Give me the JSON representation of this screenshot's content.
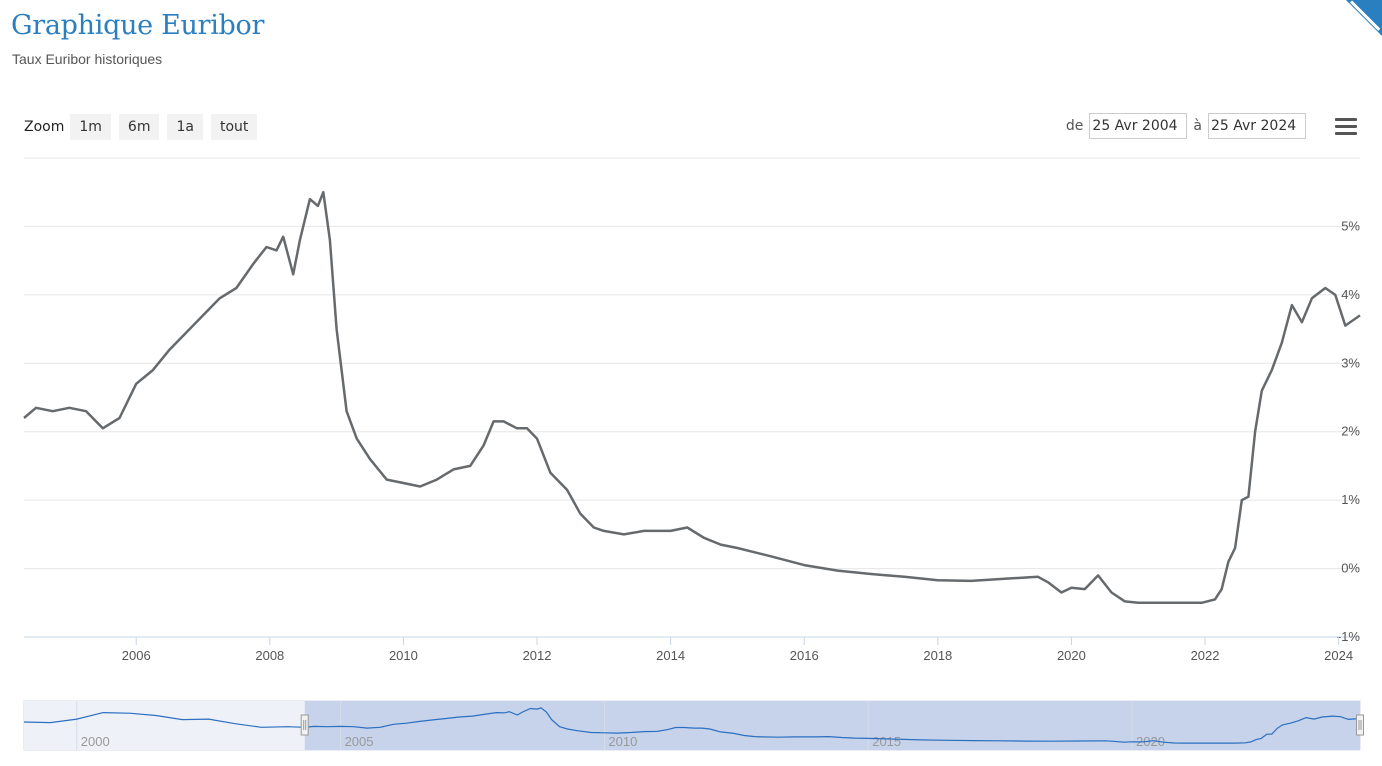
{
  "header": {
    "title": "Graphique Euribor",
    "subtitle": "Taux Euribor historiques"
  },
  "toolbar": {
    "zoom_label": "Zoom",
    "zoom_buttons": [
      "1m",
      "6m",
      "1a",
      "tout"
    ],
    "from_label": "de",
    "from_value": "25 Avr 2004",
    "to_label": "à",
    "to_value": "25 Avr 2024",
    "menu_icon": "hamburger-menu-icon"
  },
  "colors": {
    "title": "#2a7fc1",
    "line": "#666a6d",
    "navigator_line": "#2a6fc1",
    "navigator_mask": "#c6d3ea"
  },
  "chart_data": {
    "type": "line",
    "y_axis_position": "right",
    "ylim": [
      -1,
      6
    ],
    "yticks": [
      "5%",
      "4%",
      "3%",
      "2%",
      "1%",
      "0%",
      "-1%"
    ],
    "xlim": [
      2004.32,
      2024.32
    ],
    "xticks": [
      "2006",
      "2008",
      "2010",
      "2012",
      "2014",
      "2016",
      "2018",
      "2020",
      "2022",
      "2024"
    ],
    "grid": true,
    "series": [
      {
        "x": [
          2004.32,
          2004.5,
          2004.75,
          2005.0,
          2005.25,
          2005.5,
          2005.75,
          2006.0,
          2006.25,
          2006.5,
          2006.75,
          2007.0,
          2007.25,
          2007.5,
          2007.75,
          2007.95,
          2008.1,
          2008.2,
          2008.35,
          2008.45,
          2008.6,
          2008.72,
          2008.8,
          2008.9,
          2009.0,
          2009.15,
          2009.3,
          2009.5,
          2009.75,
          2010.0,
          2010.25,
          2010.5,
          2010.75,
          2011.0,
          2011.2,
          2011.35,
          2011.5,
          2011.7,
          2011.85,
          2012.0,
          2012.2,
          2012.45,
          2012.65,
          2012.85,
          2013.0,
          2013.3,
          2013.6,
          2014.0,
          2014.25,
          2014.5,
          2014.75,
          2015.0,
          2015.5,
          2016.0,
          2016.5,
          2017.0,
          2017.5,
          2018.0,
          2018.5,
          2019.0,
          2019.5,
          2019.65,
          2019.85,
          2020.0,
          2020.2,
          2020.4,
          2020.6,
          2020.8,
          2021.0,
          2021.5,
          2021.95,
          2022.15,
          2022.25,
          2022.35,
          2022.45,
          2022.55,
          2022.65,
          2022.75,
          2022.85,
          2023.0,
          2023.15,
          2023.3,
          2023.45,
          2023.6,
          2023.8,
          2023.95,
          2024.1,
          2024.32
        ],
        "values": [
          2.2,
          2.35,
          2.3,
          2.35,
          2.3,
          2.05,
          2.2,
          2.7,
          2.9,
          3.2,
          3.45,
          3.7,
          3.95,
          4.1,
          4.45,
          4.7,
          4.65,
          4.85,
          4.3,
          4.8,
          5.4,
          5.3,
          5.5,
          4.8,
          3.5,
          2.3,
          1.9,
          1.6,
          1.3,
          1.25,
          1.2,
          1.3,
          1.45,
          1.5,
          1.8,
          2.15,
          2.15,
          2.05,
          2.05,
          1.9,
          1.4,
          1.15,
          0.8,
          0.6,
          0.55,
          0.5,
          0.55,
          0.55,
          0.6,
          0.45,
          0.35,
          0.3,
          0.18,
          0.05,
          -0.03,
          -0.08,
          -0.12,
          -0.17,
          -0.18,
          -0.15,
          -0.12,
          -0.2,
          -0.35,
          -0.28,
          -0.3,
          -0.1,
          -0.35,
          -0.48,
          -0.5,
          -0.5,
          -0.5,
          -0.45,
          -0.3,
          0.1,
          0.3,
          1.0,
          1.05,
          2.0,
          2.6,
          2.9,
          3.3,
          3.85,
          3.6,
          3.95,
          4.1,
          4.0,
          3.55,
          3.7
        ]
      }
    ],
    "navigator": {
      "xticks": [
        "2000",
        "2005",
        "2010",
        "2015",
        "2020"
      ],
      "xlim": [
        1999.0,
        2024.32
      ],
      "selected_range": [
        2004.32,
        2024.32
      ],
      "series_x": [
        1999.0,
        1999.5,
        2000.0,
        2000.5,
        2001.0,
        2001.5,
        2002.0,
        2002.5,
        2003.0,
        2003.5,
        2004.0,
        2004.32
      ],
      "series_values": [
        3.1,
        3.0,
        3.6,
        4.7,
        4.6,
        4.2,
        3.5,
        3.6,
        2.8,
        2.2,
        2.3,
        2.2
      ]
    }
  }
}
